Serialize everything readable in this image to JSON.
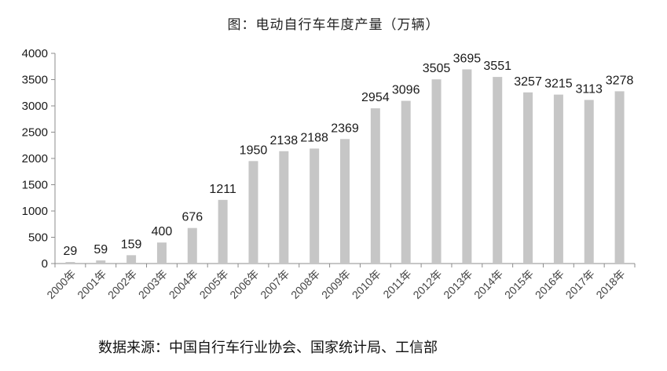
{
  "title": "图：电动自行车年度产量（万辆）",
  "source": "数据来源：中国自行车行业协会、国家统计局、工信部",
  "colors": {
    "bar": "#c6c6c6",
    "axis": "#8c8c8c",
    "text": "#1a1a1a"
  },
  "chart_data": {
    "type": "bar",
    "title": "图：电动自行车年度产量（万辆）",
    "xlabel": "",
    "ylabel": "",
    "categories": [
      "2000年",
      "2001年",
      "2002年",
      "2003年",
      "2004年",
      "2005年",
      "2006年",
      "2007年",
      "2008年",
      "2009年",
      "2010年",
      "2011年",
      "2012年",
      "2013年",
      "2014年",
      "2015年",
      "2016年",
      "2017年",
      "2018年"
    ],
    "values": [
      29,
      59,
      159,
      400,
      676,
      1211,
      1950,
      2138,
      2188,
      2369,
      2954,
      3096,
      3505,
      3695,
      3551,
      3257,
      3215,
      3113,
      3278
    ],
    "ylim": [
      0,
      4000
    ],
    "yticks": [
      "0",
      "500",
      "1000",
      "1500",
      "2000",
      "2500",
      "3000",
      "3500",
      "4000"
    ],
    "grid": false,
    "legend": "none"
  }
}
